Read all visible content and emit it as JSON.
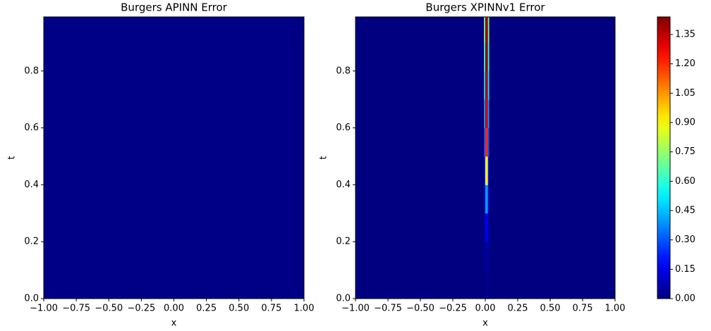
{
  "chart_data": [
    {
      "type": "heatmap",
      "title": "Burgers APINN Error",
      "x_label": "x",
      "y_label": "t",
      "xlim": [
        -1,
        1
      ],
      "ylim": [
        0,
        0.99
      ],
      "xticks": [
        {
          "value": -1,
          "label": "−1.00"
        },
        {
          "value": -0.75,
          "label": "−0.75"
        },
        {
          "value": -0.5,
          "label": "−0.50"
        },
        {
          "value": -0.25,
          "label": "−0.25"
        },
        {
          "value": 0,
          "label": "0.00"
        },
        {
          "value": 0.25,
          "label": "0.25"
        },
        {
          "value": 0.5,
          "label": "0.50"
        },
        {
          "value": 0.75,
          "label": "0.75"
        },
        {
          "value": 1,
          "label": "1.00"
        }
      ],
      "yticks": [
        {
          "value": 0,
          "label": "0.0"
        },
        0.2,
        0.4,
        0.6,
        0.8
      ],
      "x_edges": [
        -1,
        1
      ],
      "t_edges": [
        0,
        0.99
      ],
      "z": [
        [
          0.01
        ]
      ],
      "colormap": "jet"
    },
    {
      "type": "heatmap",
      "title": "Burgers XPINNv1 Error",
      "x_label": "x",
      "y_label": "t",
      "xlim": [
        -1,
        1
      ],
      "ylim": [
        0,
        0.99
      ],
      "xticks": [
        {
          "value": -1,
          "label": "−1.00"
        },
        {
          "value": -0.75,
          "label": "−0.75"
        },
        {
          "value": -0.5,
          "label": "−0.50"
        },
        {
          "value": -0.25,
          "label": "−0.25"
        },
        {
          "value": 0,
          "label": "0.00"
        },
        {
          "value": 0.25,
          "label": "0.25"
        },
        {
          "value": 0.5,
          "label": "0.50"
        },
        {
          "value": 0.75,
          "label": "0.75"
        },
        {
          "value": 1,
          "label": "1.00"
        }
      ],
      "yticks": [
        {
          "value": 0,
          "label": "0.0"
        },
        0.2,
        0.4,
        0.6,
        0.8
      ],
      "x_edges": [
        -1,
        -0.01,
        0,
        0.01,
        0.02,
        0.03,
        1
      ],
      "t_edges": [
        0,
        0.1,
        0.2,
        0.3,
        0.4,
        0.5,
        0.6,
        0.7,
        0.8,
        0.9,
        0.99
      ],
      "z": [
        [
          0,
          0,
          0.02,
          0.02,
          0,
          0
        ],
        [
          0,
          0.02,
          0.05,
          0.05,
          0.02,
          0
        ],
        [
          0,
          0.05,
          0.15,
          0.15,
          0.05,
          0
        ],
        [
          0,
          0.1,
          0.4,
          0.4,
          0.1,
          0
        ],
        [
          0,
          0.2,
          0.9,
          0.9,
          0.2,
          0
        ],
        [
          0,
          0.3,
          1.2,
          1.2,
          0.3,
          0
        ],
        [
          0,
          0.4,
          1.35,
          1.3,
          0.4,
          0
        ],
        [
          0,
          0.5,
          1.4,
          1.35,
          0.5,
          0
        ],
        [
          0,
          0.6,
          1.42,
          1.4,
          0.6,
          0
        ],
        [
          0,
          0.7,
          1.42,
          1.4,
          0.7,
          0
        ]
      ],
      "colormap": "jet"
    }
  ],
  "colorbar": {
    "clim": [
      0,
      1.44
    ],
    "ticks": [
      {
        "value": 0,
        "label": "0.00"
      },
      0.15,
      {
        "value": 0.3,
        "label": "0.30"
      },
      0.45,
      {
        "value": 0.6,
        "label": "0.60"
      },
      0.75,
      {
        "value": 0.9,
        "label": "0.90"
      },
      1.05,
      {
        "value": 1.2,
        "label": "1.20"
      },
      1.35
    ]
  }
}
